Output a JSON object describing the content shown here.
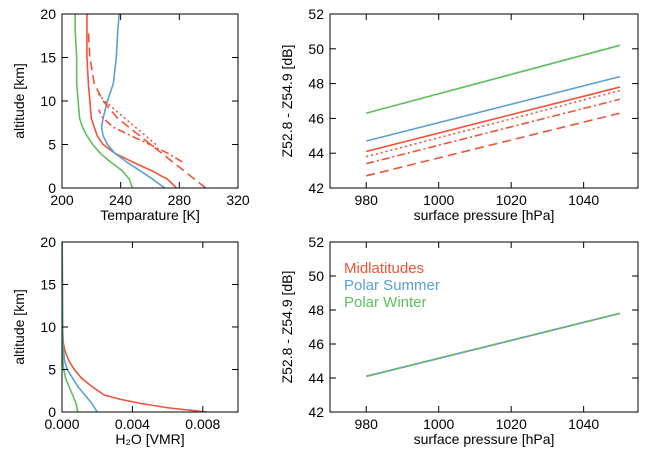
{
  "chart_data": [
    {
      "type": "line",
      "xlabel": "Temparature [K]",
      "ylabel": "altitude [km]",
      "xlim": [
        200,
        320
      ],
      "ylim": [
        0,
        20
      ],
      "xticks": [
        200,
        240,
        280,
        320
      ],
      "yticks": [
        0,
        5,
        10,
        15,
        20
      ],
      "grid": false,
      "series": [
        {
          "color": "#f0533a",
          "dash": "solid",
          "x": [
            278,
            272,
            261,
            248,
            236,
            228,
            224,
            222,
            220,
            219,
            218,
            217,
            217,
            217
          ],
          "y": [
            0,
            1,
            2,
            3,
            4,
            5,
            6,
            7,
            8,
            10,
            12,
            15,
            18,
            20
          ]
        },
        {
          "color": "#5ba0d0",
          "dash": "solid",
          "x": [
            270,
            262,
            253,
            244,
            236,
            231,
            228,
            227,
            228,
            231,
            235,
            237,
            238,
            239
          ],
          "y": [
            0,
            1,
            2,
            3,
            4,
            5,
            6,
            7,
            8,
            10,
            12,
            15,
            18,
            20
          ]
        },
        {
          "color": "#5fbf5f",
          "dash": "solid",
          "x": [
            248,
            246,
            241,
            233,
            226,
            221,
            217,
            214,
            212,
            211,
            210,
            210,
            209,
            209
          ],
          "y": [
            0,
            1,
            2,
            3,
            4,
            5,
            6,
            7,
            8,
            10,
            12,
            15,
            18,
            20
          ]
        },
        {
          "color": "#f0533a",
          "dash": "dashed",
          "x": [
            298,
            283,
            268,
            253,
            238,
            228,
            222,
            219,
            218
          ],
          "y": [
            0,
            2,
            4,
            6,
            8,
            10,
            12,
            15,
            18
          ]
        },
        {
          "color": "#f0533a",
          "dash": "dashdot",
          "x": [
            282,
            272,
            260,
            247,
            235,
            228,
            225
          ],
          "y": [
            3,
            4,
            5,
            6,
            7,
            8,
            9
          ]
        },
        {
          "color": "#f0533a",
          "dash": "dotted",
          "x": [
            264,
            257,
            250,
            243,
            236,
            229,
            224
          ],
          "y": [
            5,
            6,
            7,
            8,
            9,
            10,
            11
          ]
        }
      ]
    },
    {
      "type": "line",
      "xlabel": "surface pressure [hPa]",
      "ylabel": "Z52.8 - Z54.9 [dB]",
      "xlim": [
        970,
        1055
      ],
      "ylim": [
        42,
        52
      ],
      "xticks": [
        980,
        1000,
        1020,
        1040
      ],
      "yticks": [
        42,
        44,
        46,
        48,
        50,
        52
      ],
      "grid": false,
      "series": [
        {
          "color": "#5fbf5f",
          "dash": "solid",
          "x": [
            980,
            1050
          ],
          "y": [
            46.3,
            50.2
          ]
        },
        {
          "color": "#5ba0d0",
          "dash": "solid",
          "x": [
            980,
            1050
          ],
          "y": [
            44.7,
            48.4
          ]
        },
        {
          "color": "#f0533a",
          "dash": "solid",
          "x": [
            980,
            1050
          ],
          "y": [
            44.1,
            47.8
          ]
        },
        {
          "color": "#f0533a",
          "dash": "dotted",
          "x": [
            980,
            1050
          ],
          "y": [
            43.8,
            47.6
          ]
        },
        {
          "color": "#f0533a",
          "dash": "dashdot",
          "x": [
            980,
            1050
          ],
          "y": [
            43.4,
            47.1
          ]
        },
        {
          "color": "#f0533a",
          "dash": "dashed",
          "x": [
            980,
            1050
          ],
          "y": [
            42.7,
            46.3
          ]
        }
      ]
    },
    {
      "type": "line",
      "xlabel": "H₂O [VMR]",
      "ylabel": "altitude [km]",
      "xlim": [
        0,
        0.01
      ],
      "ylim": [
        0,
        20
      ],
      "xticks": [
        0,
        0.004,
        0.008
      ],
      "xticklabels": [
        "0.000",
        "0.004",
        "0.008"
      ],
      "yticks": [
        0,
        5,
        10,
        15,
        20
      ],
      "grid": false,
      "series": [
        {
          "color": "#f0533a",
          "dash": "solid",
          "x": [
            0.0082,
            0.006,
            0.0045,
            0.0033,
            0.0024,
            0.0017,
            0.0011,
            0.0007,
            0.0004,
            0.0002,
            8e-05,
            2e-05,
            1e-05
          ],
          "y": [
            0,
            0.5,
            1,
            1.5,
            2,
            3,
            4,
            5,
            6,
            7,
            8,
            10,
            20
          ]
        },
        {
          "color": "#5ba0d0",
          "dash": "solid",
          "x": [
            0.002,
            0.0017,
            0.0013,
            0.0009,
            0.0006,
            0.0003,
            0.00015,
            5e-05,
            1e-05
          ],
          "y": [
            0,
            1,
            2,
            3,
            4,
            5,
            6,
            8,
            20
          ]
        },
        {
          "color": "#5fbf5f",
          "dash": "solid",
          "x": [
            0.0009,
            0.0008,
            0.0006,
            0.0004,
            0.0002,
            0.0001,
            5e-05,
            1e-05,
            5e-06
          ],
          "y": [
            0,
            1,
            2,
            3,
            4,
            5,
            6,
            8,
            20
          ]
        }
      ]
    },
    {
      "type": "line",
      "xlabel": "surface pressure [hPa]",
      "ylabel": "Z52.8 - Z54.9 [dB]",
      "xlim": [
        970,
        1055
      ],
      "ylim": [
        42,
        52
      ],
      "xticks": [
        980,
        1000,
        1020,
        1040
      ],
      "yticks": [
        42,
        44,
        46,
        48,
        50,
        52
      ],
      "grid": false,
      "legend": "top-left",
      "series": [
        {
          "name": "Midlatitudes",
          "color": "#f0533a",
          "dash": "solid",
          "x": [
            980,
            1050
          ],
          "y": [
            44.1,
            47.8
          ]
        },
        {
          "name": "Polar Summer",
          "color": "#5ba0d0",
          "dash": "solid",
          "x": [
            980,
            1050
          ],
          "y": [
            44.1,
            47.8
          ]
        },
        {
          "name": "Polar Winter",
          "color": "#5fbf5f",
          "dash": "dashed",
          "x": [
            980,
            1050
          ],
          "y": [
            44.1,
            47.8
          ]
        }
      ]
    }
  ]
}
